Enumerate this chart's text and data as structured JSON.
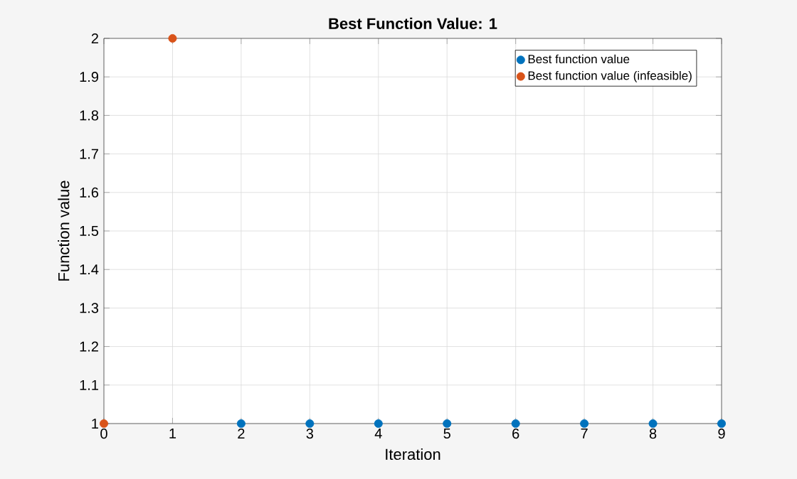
{
  "chart_data": {
    "type": "scatter",
    "title": "Best Function Value: 1",
    "xlabel": "Iteration",
    "ylabel": "Function value",
    "series": [
      {
        "name": "Best function value",
        "color": "#0072bd",
        "x": [
          2,
          3,
          4,
          5,
          6,
          7,
          8,
          9
        ],
        "values": [
          1,
          1,
          1,
          1,
          1,
          1,
          1,
          1
        ]
      },
      {
        "name": "Best function value (infeasible)",
        "color": "#d95319",
        "x": [
          0,
          1
        ],
        "values": [
          1,
          2
        ]
      }
    ],
    "xlim": [
      0,
      9
    ],
    "ylim": [
      1,
      2
    ],
    "xticks": [
      0,
      1,
      2,
      3,
      4,
      5,
      6,
      7,
      8,
      9
    ],
    "yticks": [
      1,
      1.1,
      1.2,
      1.3,
      1.4,
      1.5,
      1.6,
      1.7,
      1.8,
      1.9,
      2
    ],
    "grid": true,
    "legend": "top right",
    "marker": "circle"
  }
}
